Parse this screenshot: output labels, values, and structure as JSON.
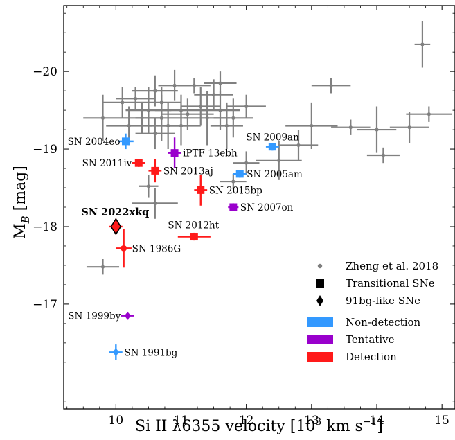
{
  "chart_data": {
    "type": "scatter",
    "xlabel_main": "Si II λ6355 velocity [10",
    "xlabel_sup_exp": "3",
    "xlabel_unit": " km s",
    "xlabel_sup_unit": "−1",
    "xlabel_close": "]",
    "ylabel_main": "M",
    "ylabel_sub": "B",
    "ylabel_unit": " [mag]",
    "xlim": [
      9.2,
      15.2
    ],
    "ylim": [
      -15.65,
      -20.85
    ],
    "y_inverted": true,
    "xticks": [
      {
        "value": 10,
        "label": "10"
      },
      {
        "value": 11,
        "label": "11"
      },
      {
        "value": 12,
        "label": "12"
      },
      {
        "value": 13,
        "label": "13"
      },
      {
        "value": 14,
        "label": "14"
      },
      {
        "value": 15,
        "label": "15"
      }
    ],
    "yticks": [
      {
        "value": -20,
        "label": "−20"
      },
      {
        "value": -19,
        "label": "−19"
      },
      {
        "value": -18,
        "label": "−18"
      },
      {
        "value": -17,
        "label": "−17"
      }
    ],
    "legend": {
      "placement": "lower-right",
      "entries": [
        {
          "label": "Zheng et al. 2018",
          "marker": "circle",
          "color": "#808080"
        },
        {
          "label": "Transitional SNe",
          "marker": "square",
          "color": "#000000"
        },
        {
          "label": "91bg-like SNe",
          "marker": "diamond",
          "color": "#000000"
        },
        {
          "label": "Non-detection",
          "marker": "patch",
          "color": "#3399ff"
        },
        {
          "label": "Tentative",
          "marker": "patch",
          "color": "#9900cc"
        },
        {
          "label": "Detection",
          "marker": "patch",
          "color": "#ff1a1a"
        }
      ]
    },
    "colors": {
      "reference": "#808080",
      "non_detection": "#3399ff",
      "tentative": "#9900cc",
      "detection": "#ff1a1a"
    },
    "reference_points": [
      {
        "x": 9.8,
        "y": -19.4,
        "xerr": 0.3,
        "yerr": 0.3
      },
      {
        "x": 10.1,
        "y": -19.6,
        "xerr": 0.3,
        "yerr": 0.2
      },
      {
        "x": 10.2,
        "y": -19.3,
        "xerr": 0.35,
        "yerr": 0.25
      },
      {
        "x": 10.3,
        "y": -19.65,
        "xerr": 0.3,
        "yerr": 0.15
      },
      {
        "x": 10.4,
        "y": -19.4,
        "xerr": 0.3,
        "yerr": 0.2
      },
      {
        "x": 10.5,
        "y": -19.5,
        "xerr": 0.35,
        "yerr": 0.3
      },
      {
        "x": 10.6,
        "y": -19.2,
        "xerr": 0.3,
        "yerr": 0.2
      },
      {
        "x": 10.6,
        "y": -19.75,
        "xerr": 0.35,
        "yerr": 0.2
      },
      {
        "x": 10.7,
        "y": -19.4,
        "xerr": 0.4,
        "yerr": 0.3
      },
      {
        "x": 10.7,
        "y": -19.6,
        "xerr": 0.3,
        "yerr": 0.2
      },
      {
        "x": 10.8,
        "y": -19.3,
        "xerr": 0.3,
        "yerr": 0.3
      },
      {
        "x": 10.9,
        "y": -19.82,
        "xerr": 0.25,
        "yerr": 0.2
      },
      {
        "x": 11.0,
        "y": -19.5,
        "xerr": 0.4,
        "yerr": 0.2
      },
      {
        "x": 11.0,
        "y": -19.3,
        "xerr": 0.3,
        "yerr": 0.25
      },
      {
        "x": 11.1,
        "y": -19.45,
        "xerr": 0.4,
        "yerr": 0.2
      },
      {
        "x": 11.2,
        "y": -19.82,
        "xerr": 0.25,
        "yerr": 0.1
      },
      {
        "x": 11.3,
        "y": -19.55,
        "xerr": 0.3,
        "yerr": 0.25
      },
      {
        "x": 11.4,
        "y": -19.4,
        "xerr": 0.35,
        "yerr": 0.35
      },
      {
        "x": 11.5,
        "y": -19.7,
        "xerr": 0.3,
        "yerr": 0.2
      },
      {
        "x": 11.6,
        "y": -19.85,
        "xerr": 0.25,
        "yerr": 0.15
      },
      {
        "x": 11.6,
        "y": -19.5,
        "xerr": 0.3,
        "yerr": 0.25
      },
      {
        "x": 11.7,
        "y": -19.3,
        "xerr": 0.25,
        "yerr": 0.3
      },
      {
        "x": 11.8,
        "y": -19.4,
        "xerr": 0.3,
        "yerr": 0.25
      },
      {
        "x": 12.0,
        "y": -19.55,
        "xerr": 0.3,
        "yerr": 0.15
      },
      {
        "x": 12.0,
        "y": -18.82,
        "xerr": 0.2,
        "yerr": 0.15
      },
      {
        "x": 12.5,
        "y": -18.85,
        "xerr": 0.35,
        "yerr": 0.25
      },
      {
        "x": 13.0,
        "y": -19.3,
        "xerr": 0.4,
        "yerr": 0.3
      },
      {
        "x": 12.8,
        "y": -19.05,
        "xerr": 0.3,
        "yerr": 0.2
      },
      {
        "x": 13.3,
        "y": -19.82,
        "xerr": 0.3,
        "yerr": 0.1
      },
      {
        "x": 13.6,
        "y": -19.28,
        "xerr": 0.3,
        "yerr": 0.1
      },
      {
        "x": 14.0,
        "y": -19.25,
        "xerr": 0.3,
        "yerr": 0.3
      },
      {
        "x": 14.1,
        "y": -18.92,
        "xerr": 0.25,
        "yerr": 0.1
      },
      {
        "x": 14.5,
        "y": -19.28,
        "xerr": 0.3,
        "yerr": 0.2
      },
      {
        "x": 14.7,
        "y": -20.35,
        "xerr": 0.12,
        "yerr": 0.3
      },
      {
        "x": 14.8,
        "y": -19.45,
        "xerr": 0.35,
        "yerr": 0.1
      },
      {
        "x": 10.5,
        "y": -18.52,
        "xerr": 0.15,
        "yerr": 0.15
      },
      {
        "x": 10.6,
        "y": -18.3,
        "xerr": 0.35,
        "yerr": 0.2
      },
      {
        "x": 9.8,
        "y": -17.48,
        "xerr": 0.25,
        "yerr": 0.1
      },
      {
        "x": 11.8,
        "y": -18.58,
        "xerr": 0.2,
        "yerr": 0.1
      }
    ],
    "supernovae": [
      {
        "name": "SN 2004eo",
        "category": "non_detection",
        "marker": "square",
        "x": 10.15,
        "y": -19.1,
        "xerr": 0.12,
        "yerr": 0.1,
        "label_side": "left"
      },
      {
        "name": "SN 2009an",
        "category": "non_detection",
        "marker": "square",
        "x": 12.4,
        "y": -19.03,
        "xerr": 0.1,
        "yerr": 0.05,
        "label_side": "above"
      },
      {
        "name": "SN 2005am",
        "category": "non_detection",
        "marker": "square",
        "x": 11.9,
        "y": -18.68,
        "xerr": 0.1,
        "yerr": 0.05,
        "label_side": "right"
      },
      {
        "name": "SN 1991bg",
        "category": "non_detection",
        "marker": "diamond",
        "x": 10.0,
        "y": -16.38,
        "xerr": 0.1,
        "yerr": 0.1,
        "label_side": "right"
      },
      {
        "name": "iPTF 13ebh",
        "category": "tentative",
        "marker": "square",
        "x": 10.9,
        "y": -18.95,
        "xerr": 0.1,
        "yerr": 0.2,
        "label_side": "right"
      },
      {
        "name": "SN 2007on",
        "category": "tentative",
        "marker": "square",
        "x": 11.8,
        "y": -18.25,
        "xerr": 0.08,
        "yerr": 0.05,
        "label_side": "right"
      },
      {
        "name": "SN 1999by",
        "category": "tentative",
        "marker": "diamond",
        "x": 10.18,
        "y": -16.85,
        "xerr": 0.1,
        "yerr": 0.05,
        "label_side": "left"
      },
      {
        "name": "SN 2011iv",
        "category": "detection",
        "marker": "square",
        "x": 10.35,
        "y": -18.82,
        "xerr": 0.1,
        "yerr": 0.05,
        "label_side": "left"
      },
      {
        "name": "SN 2013aj",
        "category": "detection",
        "marker": "square",
        "x": 10.6,
        "y": -18.72,
        "xerr": 0.1,
        "yerr": 0.15,
        "label_side": "right"
      },
      {
        "name": "SN 2015bp",
        "category": "detection",
        "marker": "square",
        "x": 11.3,
        "y": -18.47,
        "xerr": 0.1,
        "yerr": 0.2,
        "label_side": "right"
      },
      {
        "name": "SN 2012ht",
        "category": "detection",
        "marker": "square",
        "x": 11.2,
        "y": -17.87,
        "xerr": 0.25,
        "yerr": 0.05,
        "label_side": "above"
      },
      {
        "name": "SN 1986G",
        "category": "detection",
        "marker": "circle",
        "x": 10.12,
        "y": -17.72,
        "xerr": 0.12,
        "yerr": 0.25,
        "label_side": "right"
      },
      {
        "name": "SN 2022xkq",
        "category": "detection",
        "marker": "diamond",
        "x": 10.0,
        "y": -18.0,
        "xerr": 0.1,
        "yerr": 0.1,
        "label_side": "above",
        "bold": true
      }
    ]
  }
}
